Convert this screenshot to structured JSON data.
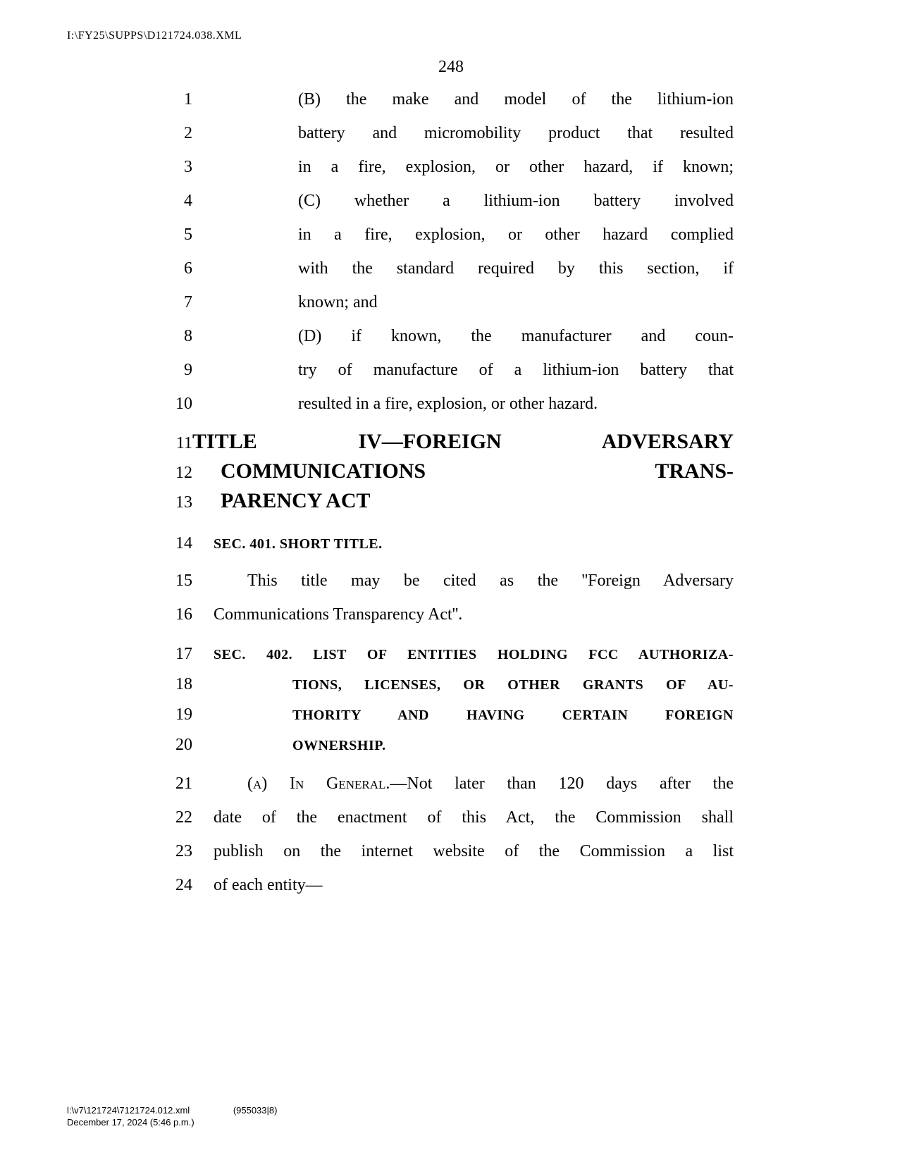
{
  "header": {
    "path": "I:\\FY25\\SUPPS\\D121724.038.XML"
  },
  "page_number": "248",
  "lines": [
    {
      "num": "1",
      "type": "body",
      "indent": "b",
      "justify": true,
      "text": "(B) the make and model of the lithium-ion"
    },
    {
      "num": "2",
      "type": "body",
      "indent": "b",
      "justify": true,
      "text": "battery and micromobility product that resulted"
    },
    {
      "num": "3",
      "type": "body",
      "indent": "b",
      "justify": true,
      "text": "in a fire, explosion, or other hazard, if known;"
    },
    {
      "num": "4",
      "type": "body",
      "indent": "b",
      "justify": true,
      "text": "(C) whether a lithium-ion battery involved"
    },
    {
      "num": "5",
      "type": "body",
      "indent": "b",
      "justify": true,
      "text": "in a fire, explosion, or other hazard complied"
    },
    {
      "num": "6",
      "type": "body",
      "indent": "b",
      "justify": true,
      "text": "with the standard required by this section, if"
    },
    {
      "num": "7",
      "type": "body",
      "indent": "b",
      "justify": false,
      "text": "known; and"
    },
    {
      "num": "8",
      "type": "body",
      "indent": "b",
      "justify": true,
      "text": "(D) if known, the manufacturer and coun-"
    },
    {
      "num": "9",
      "type": "body",
      "indent": "b",
      "justify": true,
      "text": "try of manufacture of a lithium-ion battery that"
    },
    {
      "num": "10",
      "type": "body",
      "indent": "b",
      "justify": false,
      "text": "resulted in a fire, explosion, or other hazard."
    },
    {
      "num": "11",
      "type": "title",
      "first": true,
      "text": "TITLE IV—FOREIGN ADVERSARY"
    },
    {
      "num": "12",
      "type": "title",
      "justify": true,
      "text_parts": [
        "COMMUNICATIONS",
        "TRANS-"
      ]
    },
    {
      "num": "13",
      "type": "title",
      "justify": false,
      "text": "PARENCY ACT"
    },
    {
      "num": "14",
      "type": "sec",
      "justify": false,
      "text": "SEC. 401. SHORT TITLE."
    },
    {
      "num": "15",
      "type": "body",
      "indent": "para",
      "justify": true,
      "text": "This title may be cited as the ''Foreign Adversary"
    },
    {
      "num": "16",
      "type": "body",
      "justify": false,
      "text": "Communications Transparency Act''."
    },
    {
      "num": "17",
      "type": "sec",
      "justify": true,
      "text": "SEC. 402. LIST OF ENTITIES HOLDING FCC AUTHORIZA-"
    },
    {
      "num": "18",
      "type": "sec",
      "indent": "sec",
      "justify": true,
      "text": "TIONS, LICENSES, OR OTHER GRANTS OF AU-"
    },
    {
      "num": "19",
      "type": "sec",
      "indent": "sec",
      "justify": true,
      "text": "THORITY AND HAVING CERTAIN FOREIGN"
    },
    {
      "num": "20",
      "type": "sec",
      "indent": "sec",
      "justify": false,
      "text": "OWNERSHIP."
    },
    {
      "num": "21",
      "type": "body",
      "indent": "para",
      "justify": true,
      "smallcaps_prefix": "(a) In General",
      "text_suffix": ".—Not later than 120 days after the"
    },
    {
      "num": "22",
      "type": "body",
      "justify": true,
      "text": "date of the enactment of this Act, the Commission shall"
    },
    {
      "num": "23",
      "type": "body",
      "justify": true,
      "text": "publish on the internet website of the Commission a list"
    },
    {
      "num": "24",
      "type": "body",
      "justify": false,
      "text": "of each entity—"
    }
  ],
  "footer": {
    "line1_path": "l:\\v7\\121724\\7121724.012.xml",
    "line1_docid": "(955033|8)",
    "line2": "December 17, 2024 (5:46 p.m.)"
  },
  "colors": {
    "background": "#ffffff",
    "text": "#000000"
  },
  "typography": {
    "body_font": "Century Schoolbook",
    "body_size_pt": 18,
    "title_size_pt": 22,
    "sec_size_pt": 15,
    "header_size_pt": 12,
    "footer_size_pt": 10
  }
}
